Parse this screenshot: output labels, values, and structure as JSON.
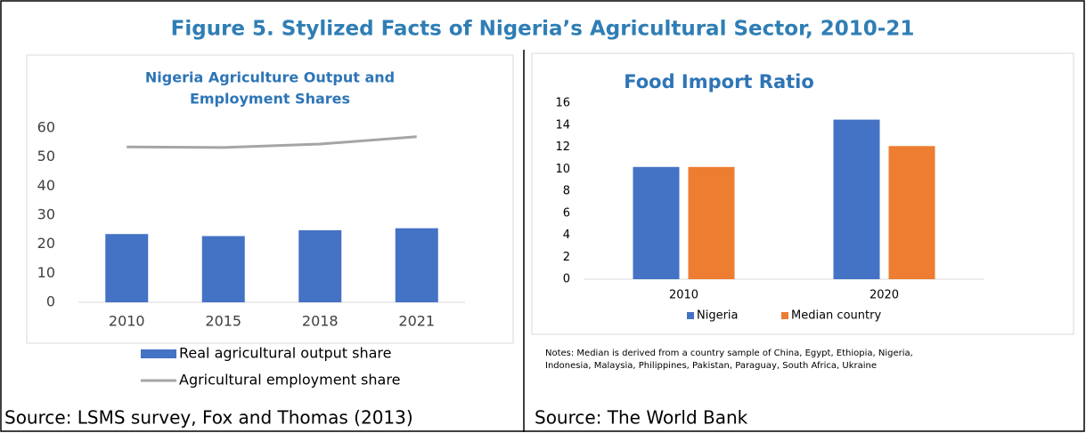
{
  "title": "Figure 5. Stylized Facts of Nigeria’s Agricultural Sector, 2010-21",
  "chart_data": [
    {
      "type": "combo",
      "title": [
        "Nigeria Agriculture Output and",
        "Employment Shares"
      ],
      "categories": [
        "2010",
        "2015",
        "2018",
        "2021"
      ],
      "series": [
        {
          "name": "Real agricultural output share",
          "color": "#4472c4",
          "type": "bar",
          "values": [
            23.5,
            22.8,
            24.8,
            25.5
          ]
        },
        {
          "name": "Agricultural employment share",
          "color": "#a5a5a5",
          "type": "line",
          "values": [
            53.5,
            53.3,
            54.5,
            57
          ]
        }
      ],
      "ylim": [
        0,
        60
      ],
      "yticks": [
        0,
        10,
        20,
        30,
        40,
        50,
        60
      ],
      "grid": false,
      "legend": "bottom"
    },
    {
      "type": "bar",
      "title": [
        "Food Import Ratio"
      ],
      "categories": [
        "2010",
        "2020"
      ],
      "series": [
        {
          "name": "Nigeria",
          "color": "#4472c4",
          "values": [
            10.2,
            14.5
          ]
        },
        {
          "name": "Median country",
          "color": "#ed7d31",
          "values": [
            10.2,
            12.1
          ]
        }
      ],
      "ylim": [
        0,
        16
      ],
      "yticks": [
        0,
        2,
        4,
        6,
        8,
        10,
        12,
        14,
        16
      ],
      "grid": false,
      "legend": "bottom"
    }
  ],
  "notes": [
    "Notes: Median is derived from a country sample of China, Egypt, Ethiopia, Nigeria,",
    "Indonesia, Malaysia, Philippines, Pakistan, Paraguay, South Africa, Ukraine"
  ],
  "sources": [
    "Source: LSMS survey, Fox and Thomas (2013)",
    "Source: The World Bank"
  ]
}
